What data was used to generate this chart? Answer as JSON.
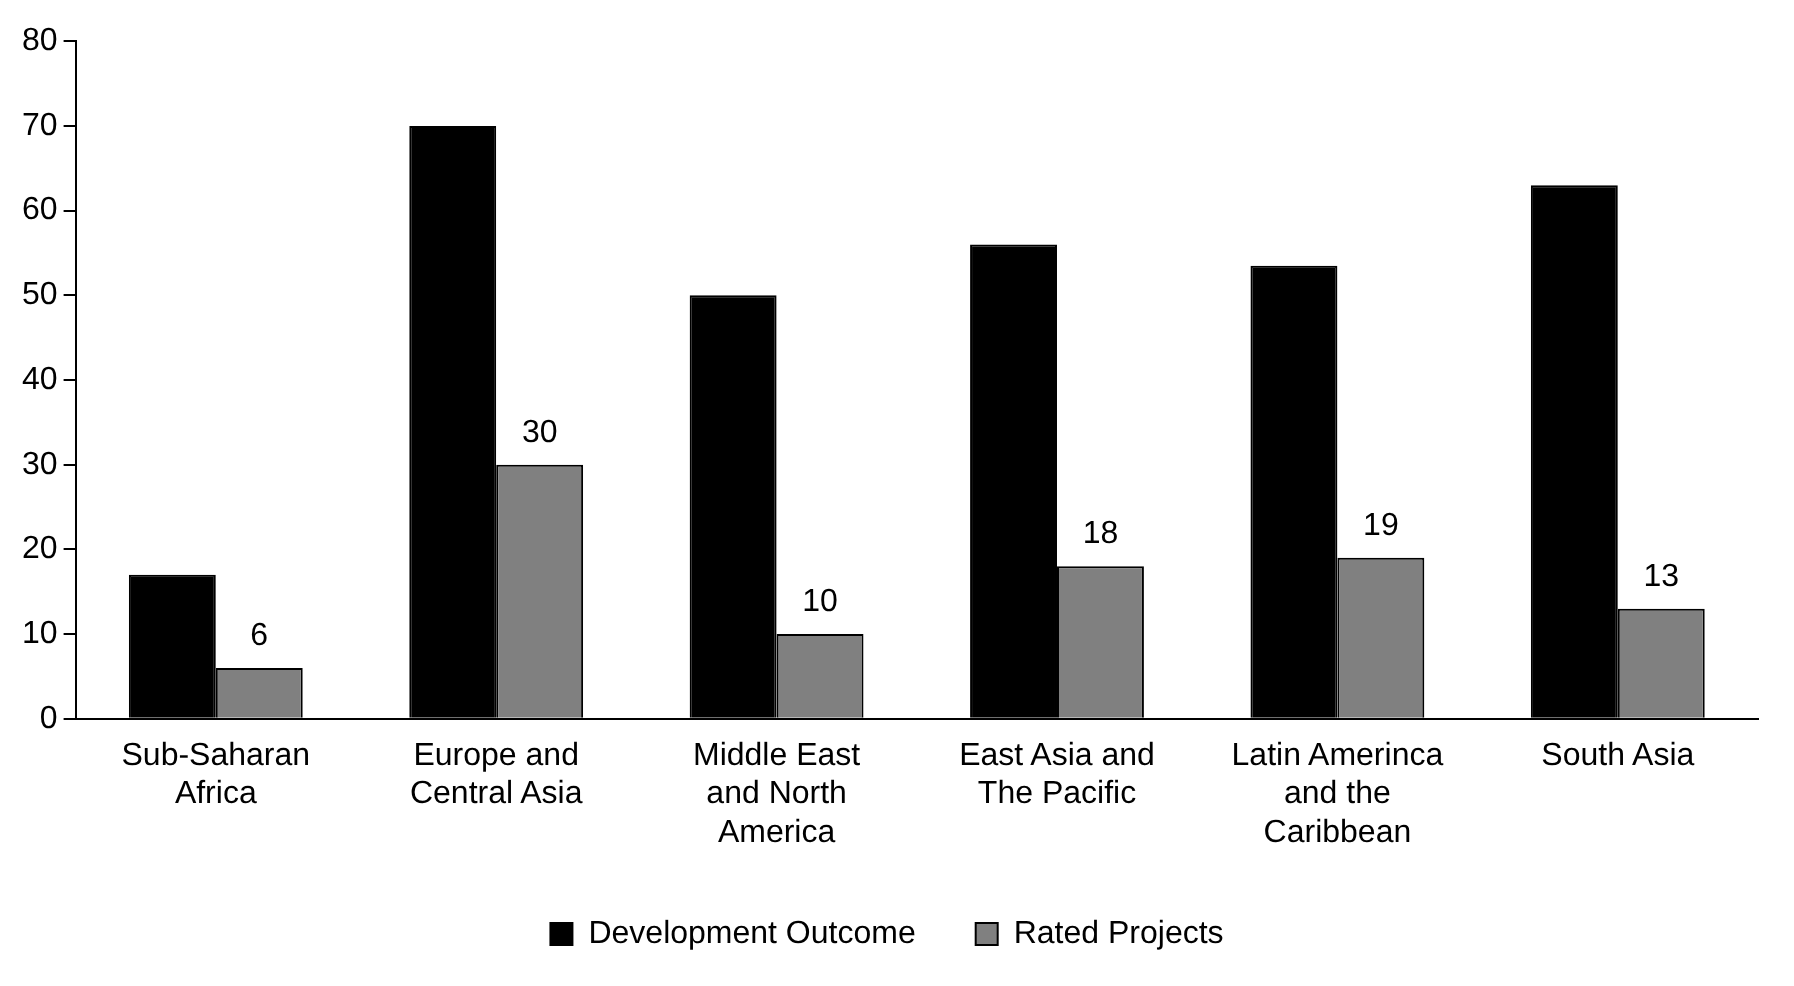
{
  "chart_data": {
    "type": "bar",
    "categories": [
      "Sub-Saharan Africa",
      "Europe and Central Asia",
      "Middle East and North America",
      "East Asia and The Pacific",
      "Latin Amerinca and the Caribbean",
      "South Asia"
    ],
    "series": [
      {
        "name": "Development Outcome",
        "color": "#000000",
        "values": [
          17,
          70,
          50,
          56,
          53.5,
          63
        ]
      },
      {
        "name": "Rated Projects",
        "color": "#808080",
        "values": [
          6,
          30,
          10,
          18,
          19,
          13
        ],
        "value_labels": [
          "6",
          "30",
          "10",
          "18",
          "19",
          "13"
        ]
      }
    ],
    "ylim": [
      0,
      80
    ],
    "yticks": [
      0,
      10,
      20,
      30,
      40,
      50,
      60,
      70,
      80
    ],
    "grid": false,
    "legend": "bottom"
  }
}
